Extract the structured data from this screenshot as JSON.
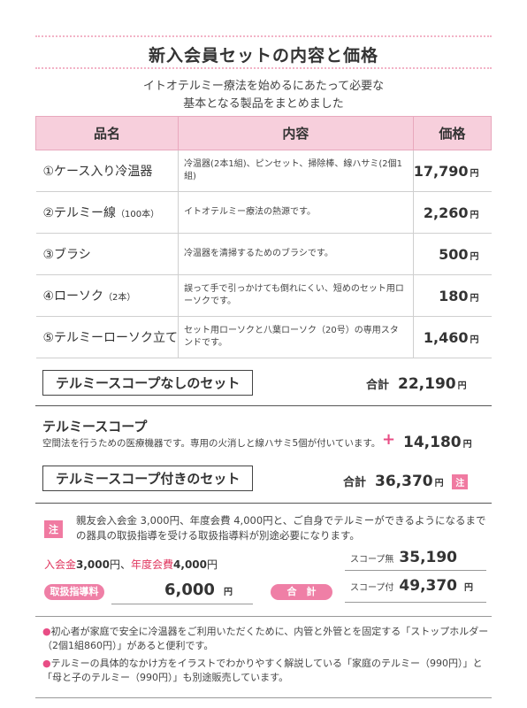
{
  "title": "新入会員セットの内容と価格",
  "intro": [
    "イトオテルミー療法を始めるにあたって必要な",
    "基本となる製品をまとめました"
  ],
  "table": {
    "headers": [
      "品名",
      "内容",
      "価格"
    ],
    "rows": [
      {
        "name": "①ケース入り冷温器",
        "name_note": "",
        "desc": "冷温器(2本1組)、ピンセット、掃除棒、線ハサミ(2個1組)",
        "price": "17,790",
        "unit": "円"
      },
      {
        "name": "②テルミー線",
        "name_note": "（100本）",
        "desc": "イトオテルミー療法の熱源です。",
        "price": "2,260",
        "unit": "円"
      },
      {
        "name": "③ブラシ",
        "name_note": "",
        "desc": "冷温器を清掃するためのブラシです。",
        "price": "500",
        "unit": "円"
      },
      {
        "name": "④ローソク",
        "name_note": "（2本）",
        "desc": "誤って手で引っかけても倒れにくい、短めのセット用ローソクです。",
        "price": "180",
        "unit": "円"
      },
      {
        "name": "⑤テルミーローソク立て",
        "name_note": "",
        "desc": "セット用ローソクと八葉ローソク（20号）の専用スタンドです。",
        "price": "1,460",
        "unit": "円"
      }
    ]
  },
  "set_without": {
    "label": "テルミースコープなしのセット",
    "total_label": "合計",
    "total": "22,190",
    "unit": "円"
  },
  "scope": {
    "title": "テルミースコープ",
    "desc": "空間法を行うための医療機器です。専用の火消しと線ハサミ5個が付いています。",
    "plus": "+",
    "price": "14,180",
    "unit": "円"
  },
  "set_with": {
    "label": "テルミースコープ付きのセット",
    "total_label": "合計",
    "total": "36,370",
    "unit": "円",
    "note_badge": "注"
  },
  "note": {
    "badge": "注",
    "text": "親友会入会金 3,000円、年度会費 4,000円と、ご自身でテルミーができるようになるまでの器具の取扱指導を受ける取扱指導料が別途必要になります。"
  },
  "fees": {
    "entry_label": "入会金",
    "entry": "3,000",
    "annual_label": "年度会費",
    "annual": "4,000",
    "unit": "円",
    "separator": "、"
  },
  "guidance": {
    "label": "取扱指導料",
    "amount": "6,000",
    "unit": "円"
  },
  "sum": {
    "label": "合　計"
  },
  "scope_totals": [
    {
      "label": "スコープ無",
      "value": "35,190",
      "unit": ""
    },
    {
      "label": "スコープ付",
      "value": "49,370",
      "unit": "円"
    }
  ],
  "bullets": [
    "初心者が家庭で安全に冷温器をご利用いただくために、内管と外管とを固定する「ストップホルダー（2個1組860円）」があると便利です。",
    "テルミーの具体的なかけ方をイラストでわかりやすく解説している「家庭のテルミー（990円）」と「母と子のテルミー（990円）」も別途販売しています。"
  ],
  "colors": {
    "accent": "#f07aa1",
    "header_bg": "#f7cfdc",
    "red_text": "#e0365f"
  }
}
